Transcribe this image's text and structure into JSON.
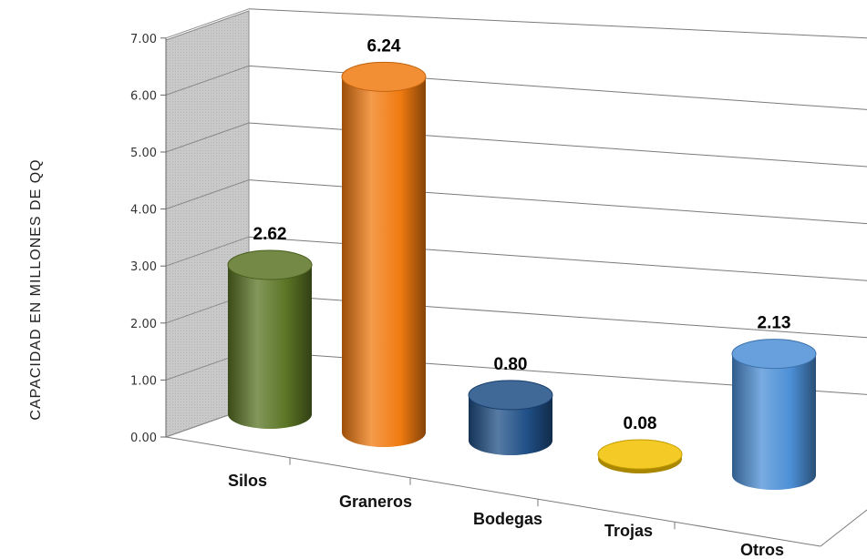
{
  "chart_data": {
    "type": "bar",
    "style": "3d-cylinder",
    "ylabel": "CAPACIDAD  EN MILLONES DE QQ",
    "xlabel": "",
    "ylim": [
      0,
      7
    ],
    "yticks": [
      "0.00",
      "1.00",
      "2.00",
      "3.00",
      "4.00",
      "5.00",
      "6.00",
      "7.00"
    ],
    "grid": true,
    "legend": "none",
    "categories": [
      "Silos",
      "Graneros",
      "Bodegas",
      "Trojas",
      "Otros"
    ],
    "values": [
      2.62,
      6.24,
      0.8,
      0.08,
      2.13
    ],
    "data_labels": [
      "2.62",
      "6.24",
      "0.80",
      "0.08",
      "2.13"
    ],
    "colors": [
      "#5a7424",
      "#f07a10",
      "#1f4f86",
      "#f2c200",
      "#4c8fd6"
    ]
  }
}
